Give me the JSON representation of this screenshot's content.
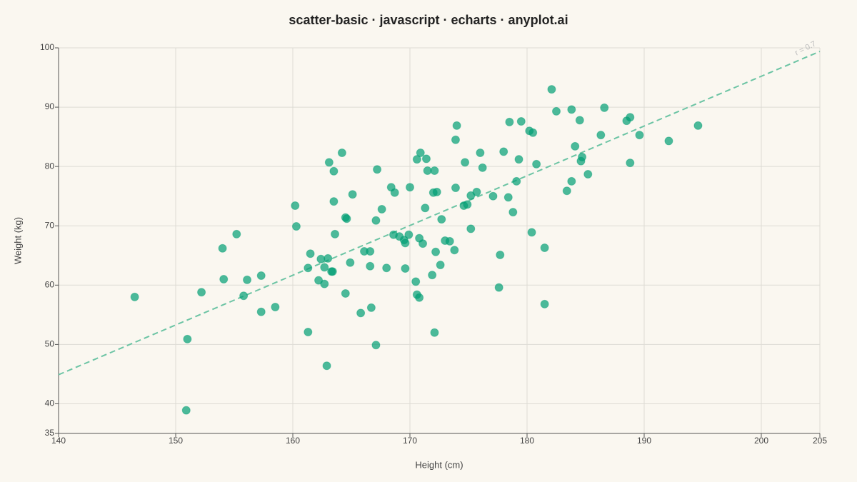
{
  "chart_data": {
    "type": "scatter",
    "title": "scatter-basic · javascript · echarts · anyplot.ai",
    "x_label": "Height (cm)",
    "y_label": "Weight (kg)",
    "annotation": "r = 0.7",
    "color": "#009e73",
    "trend_color": "#6cc4a4",
    "grid": true,
    "xlim": [
      140,
      205
    ],
    "ylim": [
      35,
      100
    ],
    "xticks": [
      140,
      150,
      160,
      170,
      180,
      190,
      200,
      205
    ],
    "yticks": [
      35,
      40,
      50,
      60,
      70,
      80,
      90,
      100
    ],
    "trendline": {
      "x": [
        140,
        205
      ],
      "y": [
        44.9,
        99.4
      ]
    },
    "x": [
      146.5,
      150.9,
      151.0,
      152.2,
      154.0,
      154.1,
      155.2,
      155.8,
      156.1,
      157.3,
      157.3,
      158.5,
      160.2,
      160.3,
      161.3,
      161.3,
      161.5,
      162.2,
      162.4,
      162.7,
      162.7,
      162.9,
      163.0,
      163.1,
      163.3,
      163.4,
      163.5,
      163.5,
      163.6,
      164.2,
      164.5,
      164.6,
      164.5,
      164.9,
      165.1,
      165.8,
      166.1,
      166.6,
      166.6,
      166.7,
      167.1,
      167.1,
      167.2,
      167.6,
      168.0,
      168.4,
      168.6,
      168.7,
      169.1,
      169.5,
      169.6,
      169.6,
      169.9,
      170.0,
      170.5,
      170.6,
      170.6,
      170.8,
      170.8,
      170.9,
      171.1,
      171.3,
      171.4,
      171.5,
      171.9,
      172.0,
      172.1,
      172.1,
      172.2,
      172.3,
      172.6,
      172.7,
      173.0,
      173.4,
      173.8,
      173.9,
      173.9,
      174.0,
      174.6,
      174.7,
      174.9,
      175.2,
      175.2,
      175.7,
      176.0,
      176.2,
      177.1,
      177.6,
      177.7,
      178.0,
      178.4,
      178.5,
      178.8,
      179.1,
      179.3,
      179.5,
      180.2,
      180.4,
      180.5,
      180.8,
      181.5,
      181.5,
      182.1,
      182.5,
      183.4,
      183.8,
      183.8,
      184.1,
      184.5,
      184.6,
      184.7,
      185.2,
      186.3,
      186.6,
      188.5,
      188.8,
      188.8,
      189.6,
      192.1,
      194.6
    ],
    "y": [
      58.0,
      38.9,
      50.9,
      58.8,
      66.2,
      61.0,
      68.6,
      58.2,
      60.9,
      61.6,
      55.5,
      56.3,
      73.4,
      69.9,
      52.1,
      62.9,
      65.3,
      60.8,
      64.4,
      63.0,
      60.2,
      46.4,
      64.5,
      80.7,
      62.3,
      62.3,
      79.2,
      74.1,
      68.6,
      82.3,
      71.4,
      71.2,
      58.6,
      63.8,
      75.3,
      55.3,
      65.7,
      65.7,
      63.2,
      56.2,
      49.9,
      70.9,
      79.5,
      72.8,
      62.9,
      76.5,
      68.5,
      75.6,
      68.2,
      67.6,
      67.1,
      62.8,
      68.5,
      76.5,
      60.6,
      81.2,
      58.4,
      67.9,
      57.9,
      82.3,
      67.0,
      73.0,
      81.3,
      79.3,
      61.7,
      75.6,
      79.3,
      52.0,
      65.6,
      75.7,
      63.4,
      71.1,
      67.5,
      67.4,
      65.9,
      84.5,
      76.4,
      86.9,
      73.4,
      80.7,
      73.6,
      75.1,
      69.5,
      75.7,
      82.3,
      79.8,
      75.0,
      59.6,
      65.1,
      82.5,
      74.8,
      87.5,
      72.3,
      77.5,
      81.2,
      87.6,
      86.0,
      68.9,
      85.7,
      80.4,
      66.3,
      56.8,
      93.0,
      89.3,
      75.9,
      89.6,
      77.5,
      83.4,
      87.8,
      80.9,
      81.6,
      78.7,
      85.3,
      89.9,
      87.7,
      80.6,
      88.3,
      85.3,
      84.3,
      86.9
    ]
  }
}
